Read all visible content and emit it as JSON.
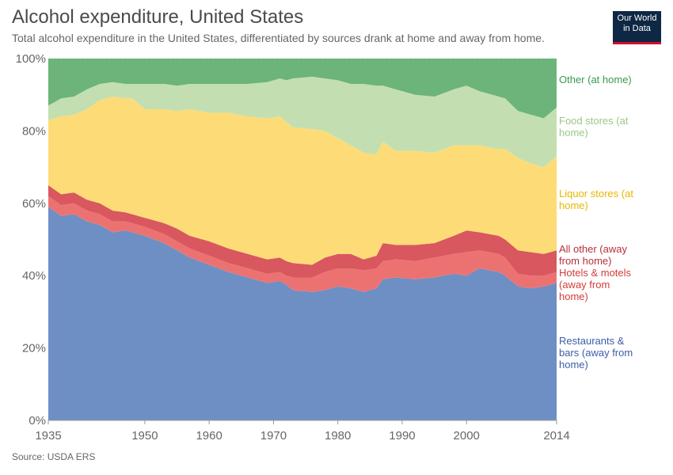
{
  "header": {
    "title": "Alcohol expenditure, United States",
    "subtitle": "Total alcohol expenditure in the United States, differentiated by sources drank at home and away from home."
  },
  "logo": {
    "line1": "Our World",
    "line2": "in Data"
  },
  "footer": {
    "source": "Source: USDA ERS"
  },
  "colors": {
    "restaurants": "#6d8fc4",
    "hotels": "#ec7272",
    "all_other_away": "#d9575f",
    "liquor": "#fddc77",
    "food_stores": "#c3dfb1",
    "other_home": "#6cb47a",
    "restaurants_label": "#3b5da6",
    "hotels_label": "#d63a3a",
    "all_other_away_label": "#b82e3a",
    "liquor_label": "#e6b800",
    "food_stores_label": "#9cc787",
    "other_home_label": "#3a9a4e"
  },
  "chart_data": {
    "type": "area",
    "stacked": true,
    "percent": true,
    "title": "Alcohol expenditure, United States",
    "subtitle": "Total alcohol expenditure in the United States, differentiated by sources drank at home and away from home.",
    "x": [
      1935,
      1937,
      1939,
      1941,
      1943,
      1945,
      1947,
      1948,
      1950,
      1953,
      1955,
      1957,
      1960,
      1963,
      1966,
      1969,
      1971,
      1972,
      1973,
      1976,
      1978,
      1980,
      1982,
      1984,
      1986,
      1987,
      1989,
      1992,
      1995,
      1998,
      2000,
      2002,
      2005,
      2006,
      2008,
      2010,
      2012,
      2014
    ],
    "xticks": [
      "1935",
      "1950",
      "1960",
      "1970",
      "1980",
      "1990",
      "2000",
      "2014"
    ],
    "yticks": [
      "0%",
      "20%",
      "40%",
      "60%",
      "80%",
      "100%"
    ],
    "ylim": [
      0,
      100
    ],
    "series": [
      {
        "name": "Restaurants & bars (away from home)",
        "values": [
          59.0,
          56.5,
          57.0,
          55.0,
          54.0,
          52.0,
          52.5,
          52.0,
          51.0,
          49.0,
          47.0,
          45.0,
          43.0,
          41.0,
          39.5,
          38.0,
          38.5,
          37.5,
          36.0,
          35.5,
          36.0,
          37.0,
          36.5,
          35.5,
          36.5,
          39.0,
          39.5,
          39.0,
          39.5,
          40.5,
          40.0,
          42.0,
          41.0,
          40.0,
          37.0,
          36.5,
          37.0,
          38.0
        ]
      },
      {
        "name": "Hotels & motels (away from home)",
        "values": [
          3.0,
          3.0,
          3.0,
          3.0,
          3.0,
          3.0,
          2.5,
          2.5,
          2.5,
          2.5,
          2.5,
          2.5,
          2.5,
          2.5,
          2.5,
          2.5,
          2.5,
          2.5,
          3.5,
          4.0,
          5.0,
          5.0,
          5.5,
          6.0,
          5.5,
          5.0,
          5.0,
          5.0,
          5.5,
          5.5,
          6.5,
          5.0,
          5.0,
          5.0,
          3.5,
          3.5,
          3.0,
          3.0
        ]
      },
      {
        "name": "All other (away from home)",
        "values": [
          3.0,
          3.0,
          3.0,
          3.0,
          3.0,
          3.0,
          2.5,
          2.5,
          2.5,
          3.0,
          3.5,
          3.5,
          4.0,
          4.0,
          4.0,
          4.0,
          4.0,
          4.0,
          4.0,
          3.5,
          4.0,
          4.0,
          4.0,
          3.0,
          3.5,
          5.0,
          4.0,
          4.5,
          4.0,
          5.0,
          6.0,
          5.0,
          5.0,
          5.0,
          6.5,
          6.5,
          6.0,
          6.0
        ]
      },
      {
        "name": "Liquor stores (at home)",
        "values": [
          18.0,
          21.5,
          21.5,
          25.0,
          28.5,
          31.5,
          31.5,
          32.0,
          30.0,
          31.5,
          32.5,
          35.0,
          35.5,
          37.5,
          38.0,
          39.0,
          39.0,
          38.5,
          37.5,
          37.5,
          35.0,
          32.0,
          30.0,
          29.5,
          28.0,
          28.0,
          26.0,
          26.0,
          25.0,
          25.0,
          23.5,
          24.0,
          24.0,
          25.0,
          25.5,
          24.5,
          24.0,
          26.0
        ]
      },
      {
        "name": "Food stores (at home)",
        "values": [
          4.0,
          5.0,
          5.0,
          5.5,
          4.5,
          4.0,
          4.0,
          4.0,
          7.0,
          7.0,
          7.0,
          7.0,
          8.0,
          8.0,
          9.0,
          10.0,
          10.5,
          11.5,
          13.5,
          14.5,
          14.5,
          16.0,
          17.0,
          19.0,
          19.0,
          15.5,
          17.0,
          15.5,
          15.5,
          15.5,
          16.5,
          15.0,
          14.5,
          14.0,
          13.0,
          13.5,
          13.5,
          13.5
        ]
      },
      {
        "name": "Other (at home)",
        "values": [
          13.0,
          11.0,
          10.5,
          8.5,
          7.0,
          6.5,
          7.0,
          7.0,
          7.0,
          7.0,
          7.5,
          7.0,
          7.0,
          7.0,
          7.0,
          6.5,
          5.5,
          6.0,
          5.5,
          5.0,
          6.0,
          6.0,
          7.0,
          7.0,
          7.5,
          7.5,
          8.5,
          10.0,
          10.5,
          8.5,
          7.5,
          9.0,
          10.5,
          11.0,
          14.5,
          15.5,
          16.5,
          13.5
        ]
      }
    ],
    "legend_position": "right",
    "legend_lines": [
      [
        "Other (at home)"
      ],
      [
        "Food stores (at",
        "home)"
      ],
      [
        "Liquor stores (at",
        "home)"
      ],
      [
        "All other (away",
        "from home)"
      ],
      [
        "Hotels & motels",
        "(away from",
        "home)"
      ],
      [
        "Restaurants &",
        "bars (away from",
        "home)"
      ]
    ],
    "grid": "horizontal-dashed"
  }
}
